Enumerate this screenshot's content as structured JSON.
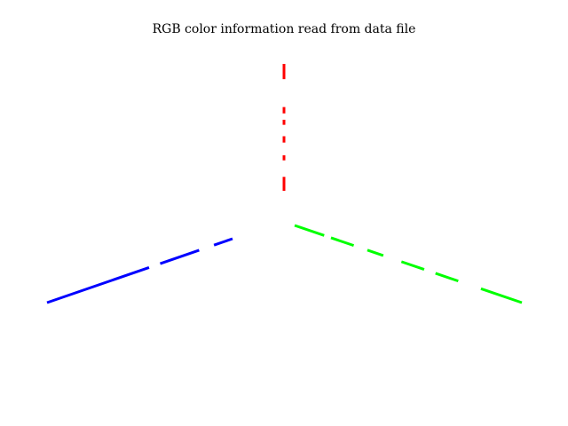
{
  "title": "RGB color information read from data file",
  "chart_data": {
    "type": "line",
    "title": "RGB color information read from data file",
    "series": [
      {
        "color": "#ff0000",
        "segments": [
          [
            0,
            0.11
          ],
          [
            0.24,
            0.28
          ],
          [
            0.38,
            0.43
          ],
          [
            0.52,
            0.56
          ],
          [
            0.61,
            0.66
          ],
          [
            0.88,
            1.0
          ]
        ]
      },
      {
        "color": "#00ff00",
        "segments": [
          [
            0,
            0.13
          ],
          [
            0.16,
            0.26
          ],
          [
            0.32,
            0.39
          ],
          [
            0.47,
            0.57
          ],
          [
            0.62,
            0.72
          ],
          [
            0.82,
            1.0
          ]
        ]
      },
      {
        "color": "#0000ff",
        "segments": [
          [
            0.0,
            0.1
          ],
          [
            0.18,
            0.39
          ],
          [
            0.45,
            1.0
          ]
        ]
      }
    ],
    "grid": false,
    "legend": "none"
  }
}
